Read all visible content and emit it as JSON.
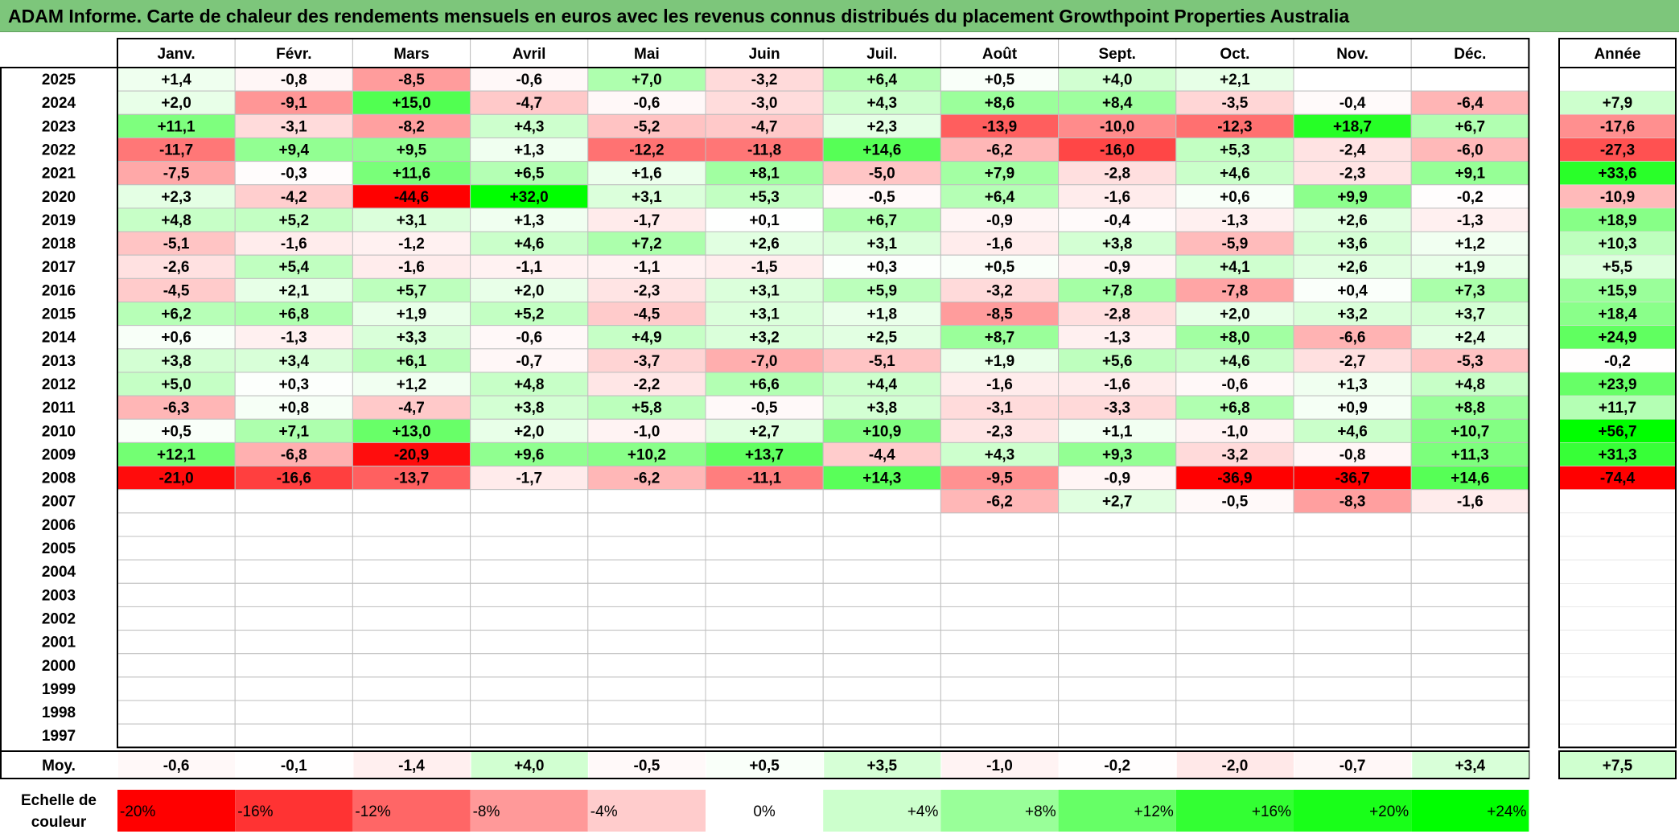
{
  "title": "ADAM Informe. Carte de chaleur des rendements mensuels en euros avec les revenus connus distribués du placement Growthpoint Properties Australia",
  "chart_data": {
    "type": "heatmap",
    "title": "ADAM Informe. Carte de chaleur des rendements mensuels en euros avec les revenus connus distribués du placement Growthpoint Properties Australia",
    "columns": [
      "Janv.",
      "Févr.",
      "Mars",
      "Avril",
      "Mai",
      "Juin",
      "Juil.",
      "Août",
      "Sept.",
      "Oct.",
      "Nov.",
      "Déc."
    ],
    "annual_label": "Année",
    "rows": [
      {
        "year": "2025",
        "values": [
          "+1,4",
          "-0,8",
          "-8,5",
          "-0,6",
          "+7,0",
          "-3,2",
          "+6,4",
          "+0,5",
          "+4,0",
          "+2,1",
          "",
          ""
        ],
        "annual": ""
      },
      {
        "year": "2024",
        "values": [
          "+2,0",
          "-9,1",
          "+15,0",
          "-4,7",
          "-0,6",
          "-3,0",
          "+4,3",
          "+8,6",
          "+8,4",
          "-3,5",
          "-0,4",
          "-6,4"
        ],
        "annual": "+7,9"
      },
      {
        "year": "2023",
        "values": [
          "+11,1",
          "-3,1",
          "-8,2",
          "+4,3",
          "-5,2",
          "-4,7",
          "+2,3",
          "-13,9",
          "-10,0",
          "-12,3",
          "+18,7",
          "+6,7"
        ],
        "annual": "-17,6"
      },
      {
        "year": "2022",
        "values": [
          "-11,7",
          "+9,4",
          "+9,5",
          "+1,3",
          "-12,2",
          "-11,8",
          "+14,6",
          "-6,2",
          "-16,0",
          "+5,3",
          "-2,4",
          "-6,0"
        ],
        "annual": "-27,3"
      },
      {
        "year": "2021",
        "values": [
          "-7,5",
          "-0,3",
          "+11,6",
          "+6,5",
          "+1,6",
          "+8,1",
          "-5,0",
          "+7,9",
          "-2,8",
          "+4,6",
          "-2,3",
          "+9,1"
        ],
        "annual": "+33,6"
      },
      {
        "year": "2020",
        "values": [
          "+2,3",
          "-4,2",
          "-44,6",
          "+32,0",
          "+3,1",
          "+5,3",
          "-0,5",
          "+6,4",
          "-1,6",
          "+0,6",
          "+9,9",
          "-0,2"
        ],
        "annual": "-10,9"
      },
      {
        "year": "2019",
        "values": [
          "+4,8",
          "+5,2",
          "+3,1",
          "+1,3",
          "-1,7",
          "+0,1",
          "+6,7",
          "-0,9",
          "-0,4",
          "-1,3",
          "+2,6",
          "-1,3"
        ],
        "annual": "+18,9"
      },
      {
        "year": "2018",
        "values": [
          "-5,1",
          "-1,6",
          "-1,2",
          "+4,6",
          "+7,2",
          "+2,6",
          "+3,1",
          "-1,6",
          "+3,8",
          "-5,9",
          "+3,6",
          "+1,2"
        ],
        "annual": "+10,3"
      },
      {
        "year": "2017",
        "values": [
          "-2,6",
          "+5,4",
          "-1,6",
          "-1,1",
          "-1,1",
          "-1,5",
          "+0,3",
          "+0,5",
          "-0,9",
          "+4,1",
          "+2,6",
          "+1,9"
        ],
        "annual": "+5,5"
      },
      {
        "year": "2016",
        "values": [
          "-4,5",
          "+2,1",
          "+5,7",
          "+2,0",
          "-2,3",
          "+3,1",
          "+5,9",
          "-3,2",
          "+7,8",
          "-7,8",
          "+0,4",
          "+7,3"
        ],
        "annual": "+15,9"
      },
      {
        "year": "2015",
        "values": [
          "+6,2",
          "+6,8",
          "+1,9",
          "+5,2",
          "-4,5",
          "+3,1",
          "+1,8",
          "-8,5",
          "-2,8",
          "+2,0",
          "+3,2",
          "+3,7"
        ],
        "annual": "+18,4"
      },
      {
        "year": "2014",
        "values": [
          "+0,6",
          "-1,3",
          "+3,3",
          "-0,6",
          "+4,9",
          "+3,2",
          "+2,5",
          "+8,7",
          "-1,3",
          "+8,0",
          "-6,6",
          "+2,4"
        ],
        "annual": "+24,9"
      },
      {
        "year": "2013",
        "values": [
          "+3,8",
          "+3,4",
          "+6,1",
          "-0,7",
          "-3,7",
          "-7,0",
          "-5,1",
          "+1,9",
          "+5,6",
          "+4,6",
          "-2,7",
          "-5,3"
        ],
        "annual": "-0,2"
      },
      {
        "year": "2012",
        "values": [
          "+5,0",
          "+0,3",
          "+1,2",
          "+4,8",
          "-2,2",
          "+6,6",
          "+4,4",
          "-1,6",
          "-1,6",
          "-0,6",
          "+1,3",
          "+4,8"
        ],
        "annual": "+23,9"
      },
      {
        "year": "2011",
        "values": [
          "-6,3",
          "+0,8",
          "-4,7",
          "+3,8",
          "+5,8",
          "-0,5",
          "+3,8",
          "-3,1",
          "-3,3",
          "+6,8",
          "+0,9",
          "+8,8"
        ],
        "annual": "+11,7"
      },
      {
        "year": "2010",
        "values": [
          "+0,5",
          "+7,1",
          "+13,0",
          "+2,0",
          "-1,0",
          "+2,7",
          "+10,9",
          "-2,3",
          "+1,1",
          "-1,0",
          "+4,6",
          "+10,7"
        ],
        "annual": "+56,7"
      },
      {
        "year": "2009",
        "values": [
          "+12,1",
          "-6,8",
          "-20,9",
          "+9,6",
          "+10,2",
          "+13,7",
          "-4,4",
          "+4,3",
          "+9,3",
          "-3,2",
          "-0,8",
          "+11,3"
        ],
        "annual": "+31,3"
      },
      {
        "year": "2008",
        "values": [
          "-21,0",
          "-16,6",
          "-13,7",
          "-1,7",
          "-6,2",
          "-11,1",
          "+14,3",
          "-9,5",
          "-0,9",
          "-36,9",
          "-36,7",
          "+14,6"
        ],
        "annual": "-74,4"
      },
      {
        "year": "2007",
        "values": [
          "",
          "",
          "",
          "",
          "",
          "",
          "",
          "-6,2",
          "+2,7",
          "-0,5",
          "-8,3",
          "-1,6"
        ],
        "annual": ""
      },
      {
        "year": "2006",
        "values": [
          "",
          "",
          "",
          "",
          "",
          "",
          "",
          "",
          "",
          "",
          "",
          ""
        ],
        "annual": ""
      },
      {
        "year": "2005",
        "values": [
          "",
          "",
          "",
          "",
          "",
          "",
          "",
          "",
          "",
          "",
          "",
          ""
        ],
        "annual": ""
      },
      {
        "year": "2004",
        "values": [
          "",
          "",
          "",
          "",
          "",
          "",
          "",
          "",
          "",
          "",
          "",
          ""
        ],
        "annual": ""
      },
      {
        "year": "2003",
        "values": [
          "",
          "",
          "",
          "",
          "",
          "",
          "",
          "",
          "",
          "",
          "",
          ""
        ],
        "annual": ""
      },
      {
        "year": "2002",
        "values": [
          "",
          "",
          "",
          "",
          "",
          "",
          "",
          "",
          "",
          "",
          "",
          ""
        ],
        "annual": ""
      },
      {
        "year": "2001",
        "values": [
          "",
          "",
          "",
          "",
          "",
          "",
          "",
          "",
          "",
          "",
          "",
          ""
        ],
        "annual": ""
      },
      {
        "year": "2000",
        "values": [
          "",
          "",
          "",
          "",
          "",
          "",
          "",
          "",
          "",
          "",
          "",
          ""
        ],
        "annual": ""
      },
      {
        "year": "1999",
        "values": [
          "",
          "",
          "",
          "",
          "",
          "",
          "",
          "",
          "",
          "",
          "",
          ""
        ],
        "annual": ""
      },
      {
        "year": "1998",
        "values": [
          "",
          "",
          "",
          "",
          "",
          "",
          "",
          "",
          "",
          "",
          "",
          ""
        ],
        "annual": ""
      },
      {
        "year": "1997",
        "values": [
          "",
          "",
          "",
          "",
          "",
          "",
          "",
          "",
          "",
          "",
          "",
          ""
        ],
        "annual": ""
      }
    ],
    "average": {
      "label": "Moy.",
      "values": [
        "-0,6",
        "-0,1",
        "-1,4",
        "+4,0",
        "-0,5",
        "+0,5",
        "+3,5",
        "-1,0",
        "-0,2",
        "-2,0",
        "-0,7",
        "+3,4"
      ],
      "annual": "+7,5"
    },
    "scale": {
      "label_line1": "Echelle de",
      "label_line2": "couleur",
      "steps": [
        {
          "label": "-20%",
          "value": -20,
          "color": "#ff0000"
        },
        {
          "label": "-16%",
          "value": -16,
          "color": "#ff3333"
        },
        {
          "label": "-12%",
          "value": -12,
          "color": "#ff6666"
        },
        {
          "label": "-8%",
          "value": -8,
          "color": "#ff9999"
        },
        {
          "label": "-4%",
          "value": -4,
          "color": "#ffcccc"
        },
        {
          "label": "0%",
          "value": 0,
          "color": "#ffffff"
        },
        {
          "label": "+4%",
          "value": 4,
          "color": "#ccffcc"
        },
        {
          "label": "+8%",
          "value": 8,
          "color": "#99ff99"
        },
        {
          "label": "+12%",
          "value": 12,
          "color": "#66ff66"
        },
        {
          "label": "+16%",
          "value": 16,
          "color": "#33ff33"
        },
        {
          "label": "+20%",
          "value": 20,
          "color": "#19ff19"
        },
        {
          "label": "+24%",
          "value": 24,
          "color": "#00ff00"
        }
      ]
    },
    "colors": {
      "negative_max": "#ff0000",
      "positive_max": "#00ff00",
      "neutral": "#ffffff",
      "title_bar": "#7dc67b"
    }
  }
}
